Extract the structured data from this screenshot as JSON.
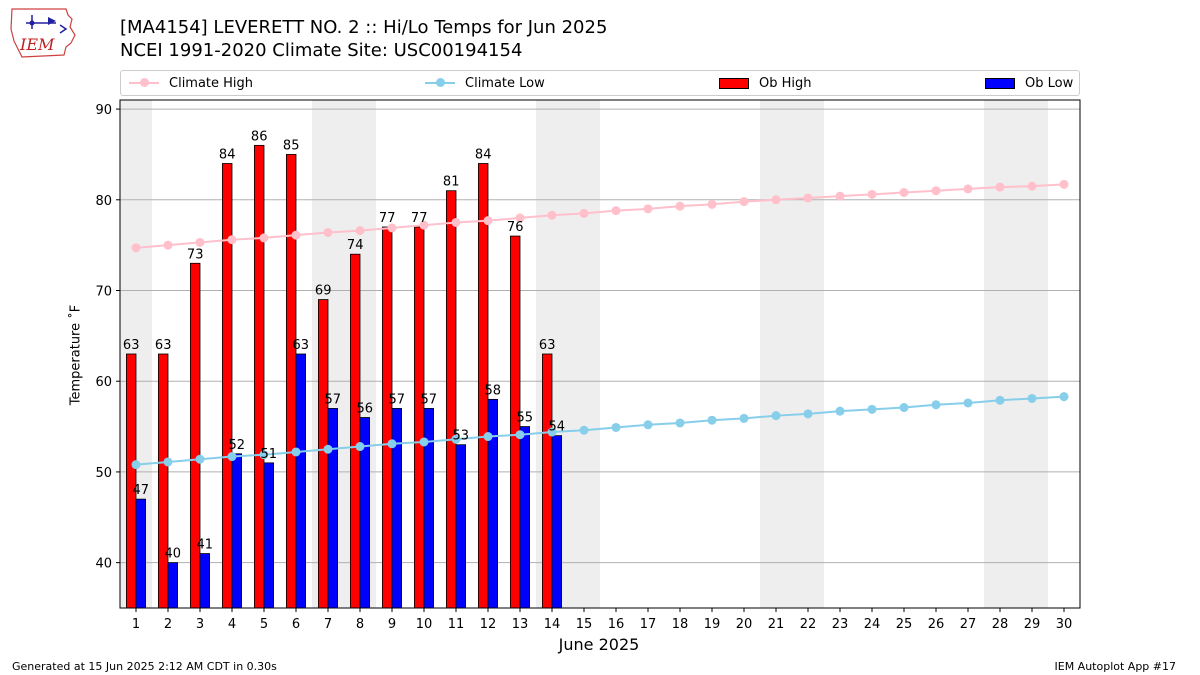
{
  "header": {
    "title_line1": "[MA4154] LEVERETT NO. 2 :: Hi/Lo Temps for Jun 2025",
    "title_line2": "NCEI 1991-2020 Climate Site: USC00194154",
    "logo_text": "IEM"
  },
  "legend": {
    "climate_high": "Climate High",
    "climate_low": "Climate Low",
    "ob_high": "Ob High",
    "ob_low": "Ob Low"
  },
  "footer": {
    "generated": "Generated at 15 Jun 2025 2:12 AM CDT in 0.30s",
    "app": "IEM Autoplot App #17"
  },
  "colors": {
    "ob_high": "#ff0000",
    "ob_low": "#0000ff",
    "climate_high": "#ffc0cb",
    "climate_low": "#87ceeb",
    "weekend_band": "#eeeeee",
    "grid": "#b0b0b0"
  },
  "chart_data": {
    "type": "bar",
    "xlabel": "June 2025",
    "ylabel": "Temperature ˚F",
    "ylim": [
      35,
      91
    ],
    "yticks": [
      40,
      50,
      60,
      70,
      80,
      90
    ],
    "grid": "horizontal",
    "legend_placement": "top",
    "days": [
      1,
      2,
      3,
      4,
      5,
      6,
      7,
      8,
      9,
      10,
      11,
      12,
      13,
      14,
      15,
      16,
      17,
      18,
      19,
      20,
      21,
      22,
      23,
      24,
      25,
      26,
      27,
      28,
      29,
      30
    ],
    "weekend_days": [
      1,
      7,
      8,
      14,
      15,
      21,
      22,
      28,
      29
    ],
    "ob_high": [
      63,
      63,
      73,
      84,
      86,
      85,
      69,
      74,
      77,
      77,
      81,
      84,
      76,
      63
    ],
    "ob_low": [
      47,
      40,
      41,
      52,
      51,
      63,
      57,
      56,
      57,
      57,
      53,
      58,
      55,
      54
    ],
    "climate_high": [
      74.7,
      75.0,
      75.3,
      75.6,
      75.8,
      76.1,
      76.4,
      76.6,
      76.9,
      77.2,
      77.5,
      77.7,
      78.0,
      78.3,
      78.5,
      78.8,
      79.0,
      79.3,
      79.5,
      79.8,
      80.0,
      80.2,
      80.4,
      80.6,
      80.8,
      81.0,
      81.2,
      81.4,
      81.5,
      81.7
    ],
    "climate_low": [
      50.8,
      51.1,
      51.4,
      51.7,
      51.9,
      52.2,
      52.5,
      52.8,
      53.1,
      53.3,
      53.6,
      53.9,
      54.1,
      54.4,
      54.6,
      54.9,
      55.2,
      55.4,
      55.7,
      55.9,
      56.2,
      56.4,
      56.7,
      56.9,
      57.1,
      57.4,
      57.6,
      57.9,
      58.1,
      58.3
    ]
  }
}
